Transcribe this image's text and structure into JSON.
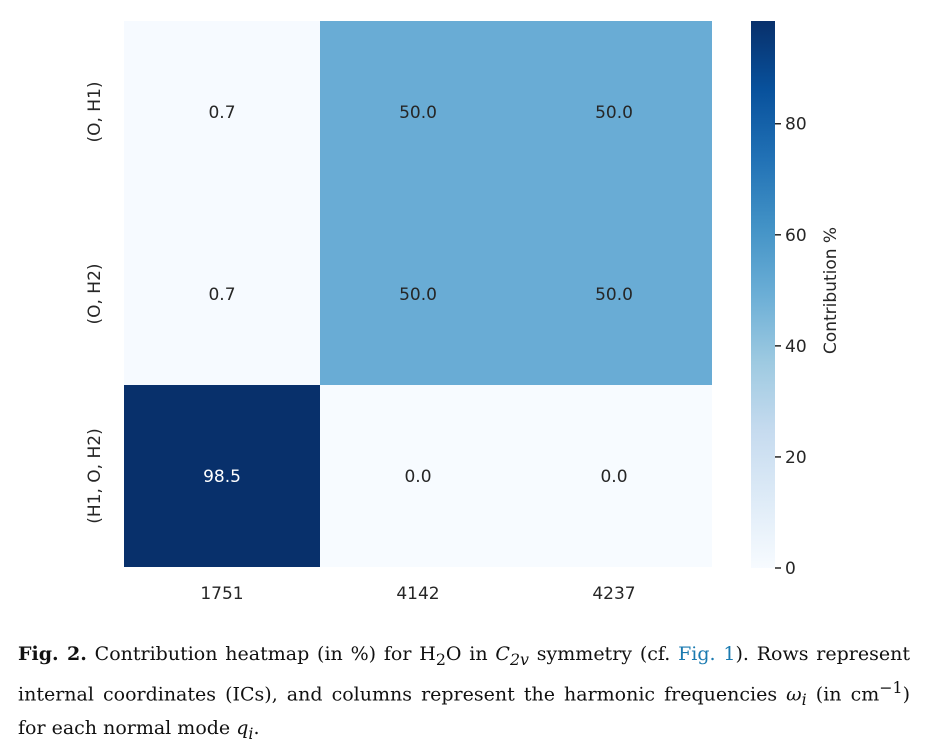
{
  "chart_data": {
    "type": "heatmap",
    "rows": [
      "(O, H1)",
      "(O, H2)",
      "(H1, O, H2)"
    ],
    "columns": [
      "1751",
      "4142",
      "4237"
    ],
    "values": [
      [
        0.7,
        50.0,
        50.0
      ],
      [
        0.7,
        50.0,
        50.0
      ],
      [
        98.5,
        0.0,
        0.0
      ]
    ],
    "value_labels": [
      [
        "0.7",
        "50.0",
        "50.0"
      ],
      [
        "0.7",
        "50.0",
        "50.0"
      ],
      [
        "98.5",
        "0.0",
        "0.0"
      ]
    ],
    "colorbar": {
      "label": "Contribution %",
      "range": [
        0,
        98.5
      ],
      "ticks": [
        0,
        20,
        40,
        60,
        80
      ],
      "colormap": "Blues"
    },
    "grid": false
  },
  "caption": {
    "label": "Fig. 2.",
    "part1": "Contribution heatmap (in %) for H",
    "sub1": "2",
    "part2": "O in ",
    "sym_main": "C",
    "sym_sub": "2v",
    "part3": " symmetry (cf. ",
    "link": "Fig. 1",
    "part4": "). Rows represent internal coordinates (ICs), and columns represent the harmonic frequencies ",
    "omega": "ω",
    "omega_sub": "i",
    "part5": " (in cm",
    "sup": "−1",
    "part6": ") for each normal mode ",
    "q": "q",
    "q_sub": "i",
    "part7": "."
  }
}
